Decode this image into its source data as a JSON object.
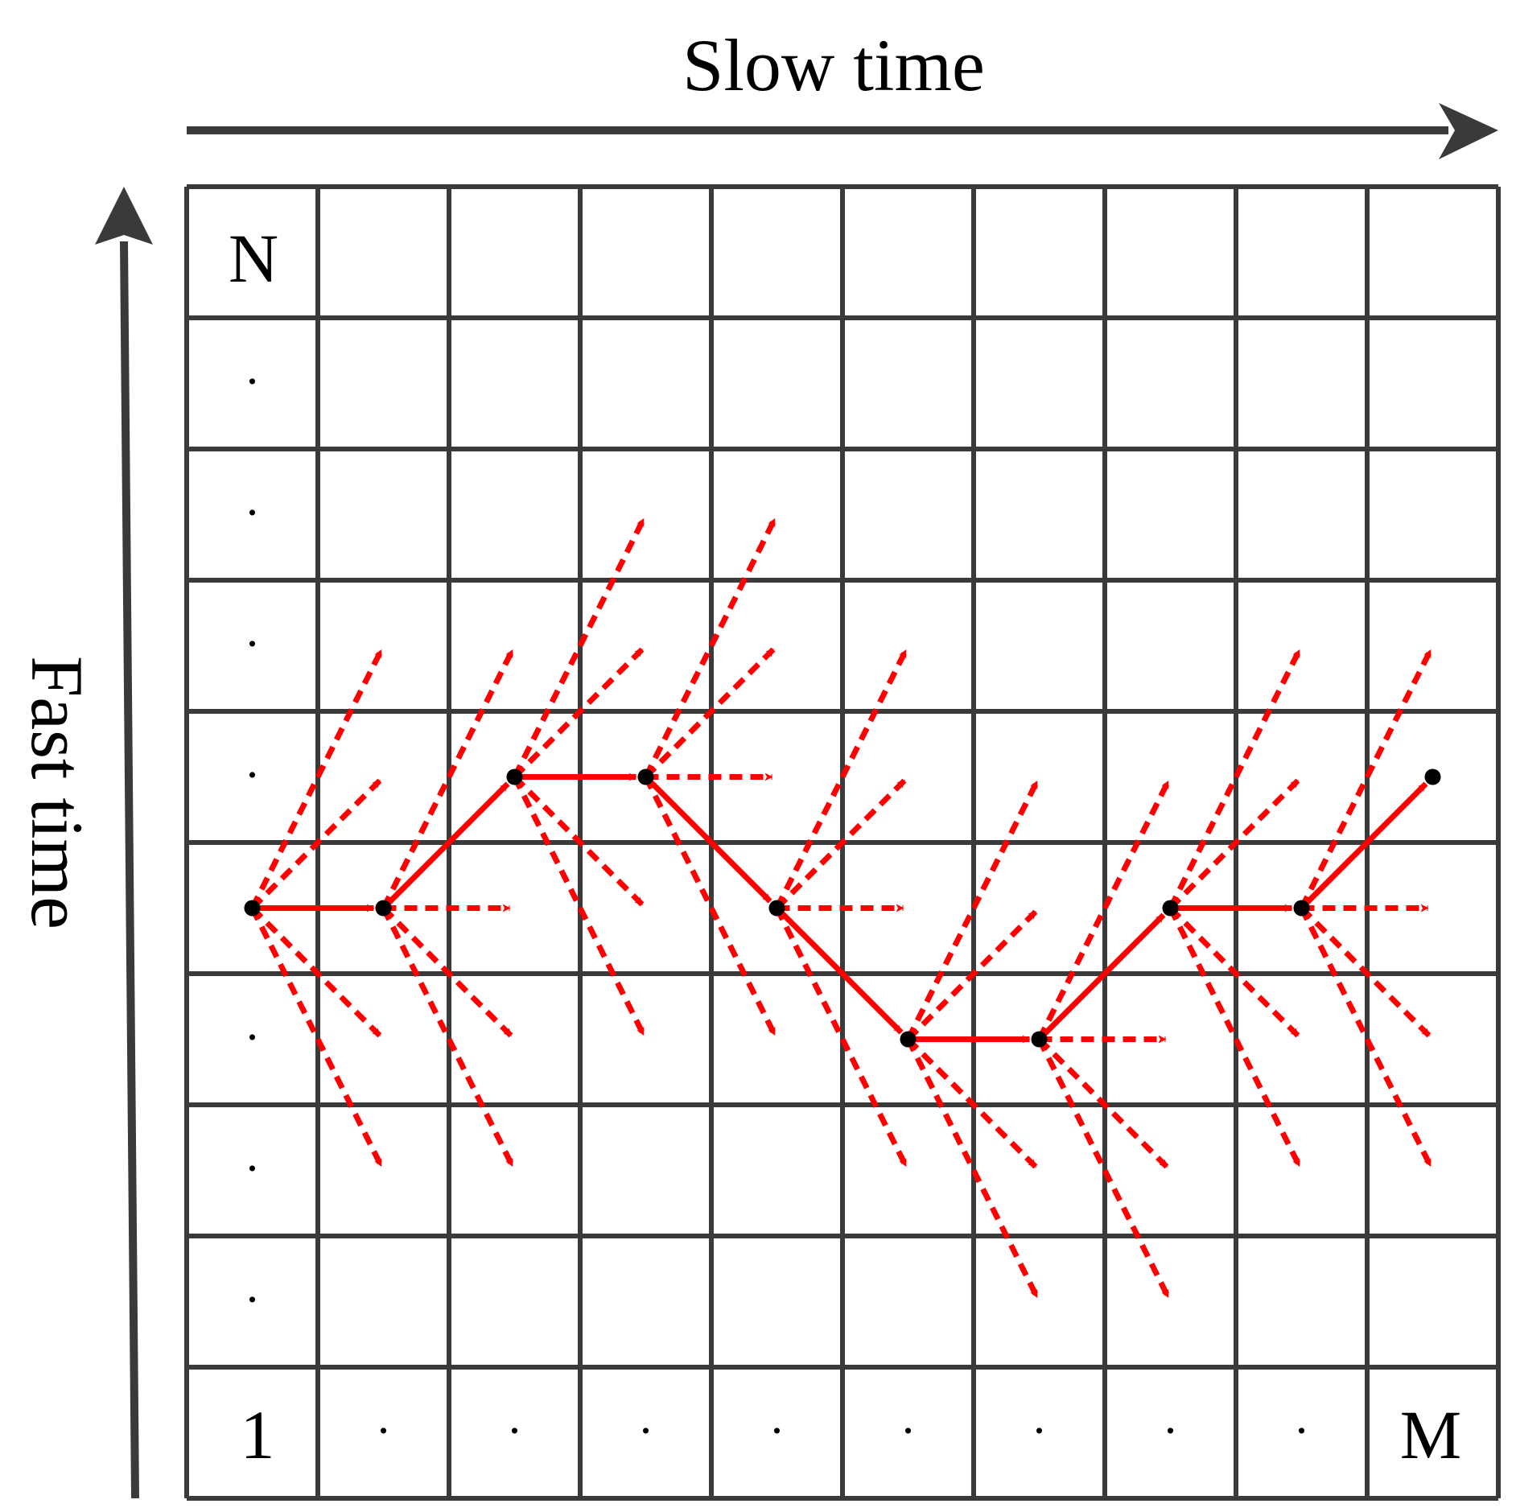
{
  "axes": {
    "x_label": "Slow time",
    "y_label": "Fast time",
    "x_end_label": "M",
    "y_end_label": "N",
    "origin_label": "1",
    "ellipsis": "."
  },
  "grid": {
    "cols": 10,
    "rows": 10
  },
  "colors": {
    "grid": "#3a3a3a",
    "path": "#ff0000",
    "node": "#000000",
    "axis": "#3a3a3a"
  },
  "path": {
    "description_rows_from_bottom": true,
    "nodes": [
      [
        1,
        5
      ],
      [
        2,
        5
      ],
      [
        3,
        6
      ],
      [
        4,
        6
      ],
      [
        5,
        5
      ],
      [
        6,
        4
      ],
      [
        7,
        4
      ],
      [
        8,
        5
      ],
      [
        9,
        5
      ],
      [
        10,
        6
      ]
    ],
    "candidate_steps": [
      -2,
      -1,
      0,
      1,
      2
    ]
  }
}
